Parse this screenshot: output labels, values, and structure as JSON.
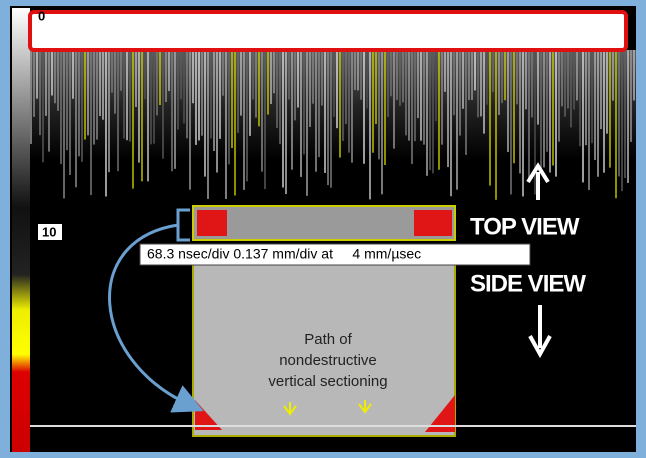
{
  "scale": {
    "top_label": "0",
    "mid_label": "10"
  },
  "info_bar": "68.3 nsec/div 0.137 mm/div at     4 mm/µsec",
  "labels": {
    "top_view": "TOP VIEW",
    "side_view": "SIDE VIEW"
  },
  "annotation": {
    "lines": [
      "Path of",
      "nondestructive",
      "vertical sectioning"
    ]
  }
}
